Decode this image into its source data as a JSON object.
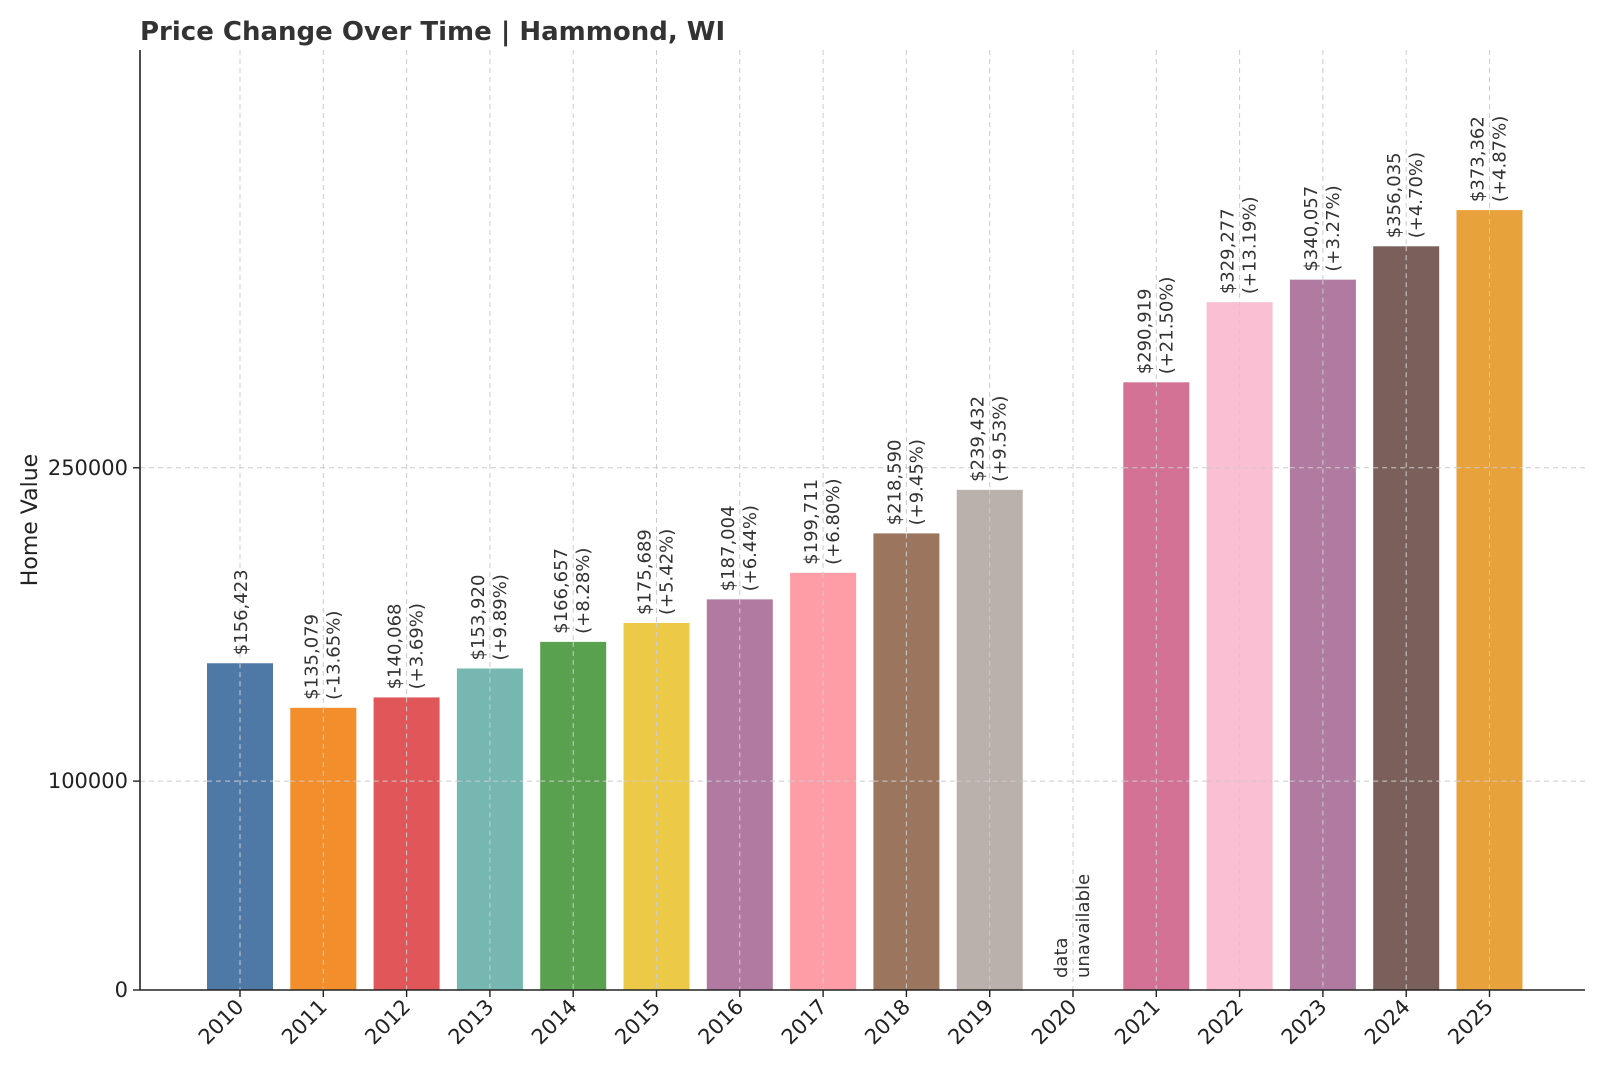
{
  "chart_data": {
    "type": "bar",
    "title": "Price Change Over Time | Hammond, WI",
    "xlabel": "",
    "ylabel": "Home Value",
    "ylim": [
      0,
      450000
    ],
    "yticks": [
      0,
      100000,
      250000
    ],
    "ytick_labels": [
      "0",
      "100000",
      "250000"
    ],
    "grid": true,
    "categories": [
      "2010",
      "2011",
      "2012",
      "2013",
      "2014",
      "2015",
      "2016",
      "2017",
      "2018",
      "2019",
      "2020",
      "2021",
      "2022",
      "2023",
      "2024",
      "2025"
    ],
    "values": [
      156423,
      135079,
      140068,
      153920,
      166657,
      175689,
      187004,
      199711,
      218590,
      239432,
      null,
      290919,
      329277,
      340057,
      356035,
      373362
    ],
    "value_labels": [
      "$156,423",
      "$135,079",
      "$140,068",
      "$153,920",
      "$166,657",
      "$175,689",
      "$187,004",
      "$199,711",
      "$218,590",
      "$239,432",
      "data",
      "$290,919",
      "$329,277",
      "$340,057",
      "$356,035",
      "$373,362"
    ],
    "change_labels": [
      "",
      "(-13.65%)",
      "(+3.69%)",
      "(+9.89%)",
      "(+8.28%)",
      "(+5.42%)",
      "(+6.44%)",
      "(+6.80%)",
      "(+9.45%)",
      "(+9.53%)",
      "unavailable",
      "(+21.50%)",
      "(+13.19%)",
      "(+3.27%)",
      "(+4.70%)",
      "(+4.87%)"
    ],
    "colors": [
      "#4e79a7",
      "#f28e2b",
      "#e15759",
      "#76b7b2",
      "#59a14f",
      "#edc948",
      "#b07aa1",
      "#ff9da7",
      "#9c755f",
      "#bab0ac",
      "#ffffff",
      "#d37295",
      "#fabfd2",
      "#b07aa1",
      "#7b5f5a",
      "#e8a23c"
    ]
  }
}
